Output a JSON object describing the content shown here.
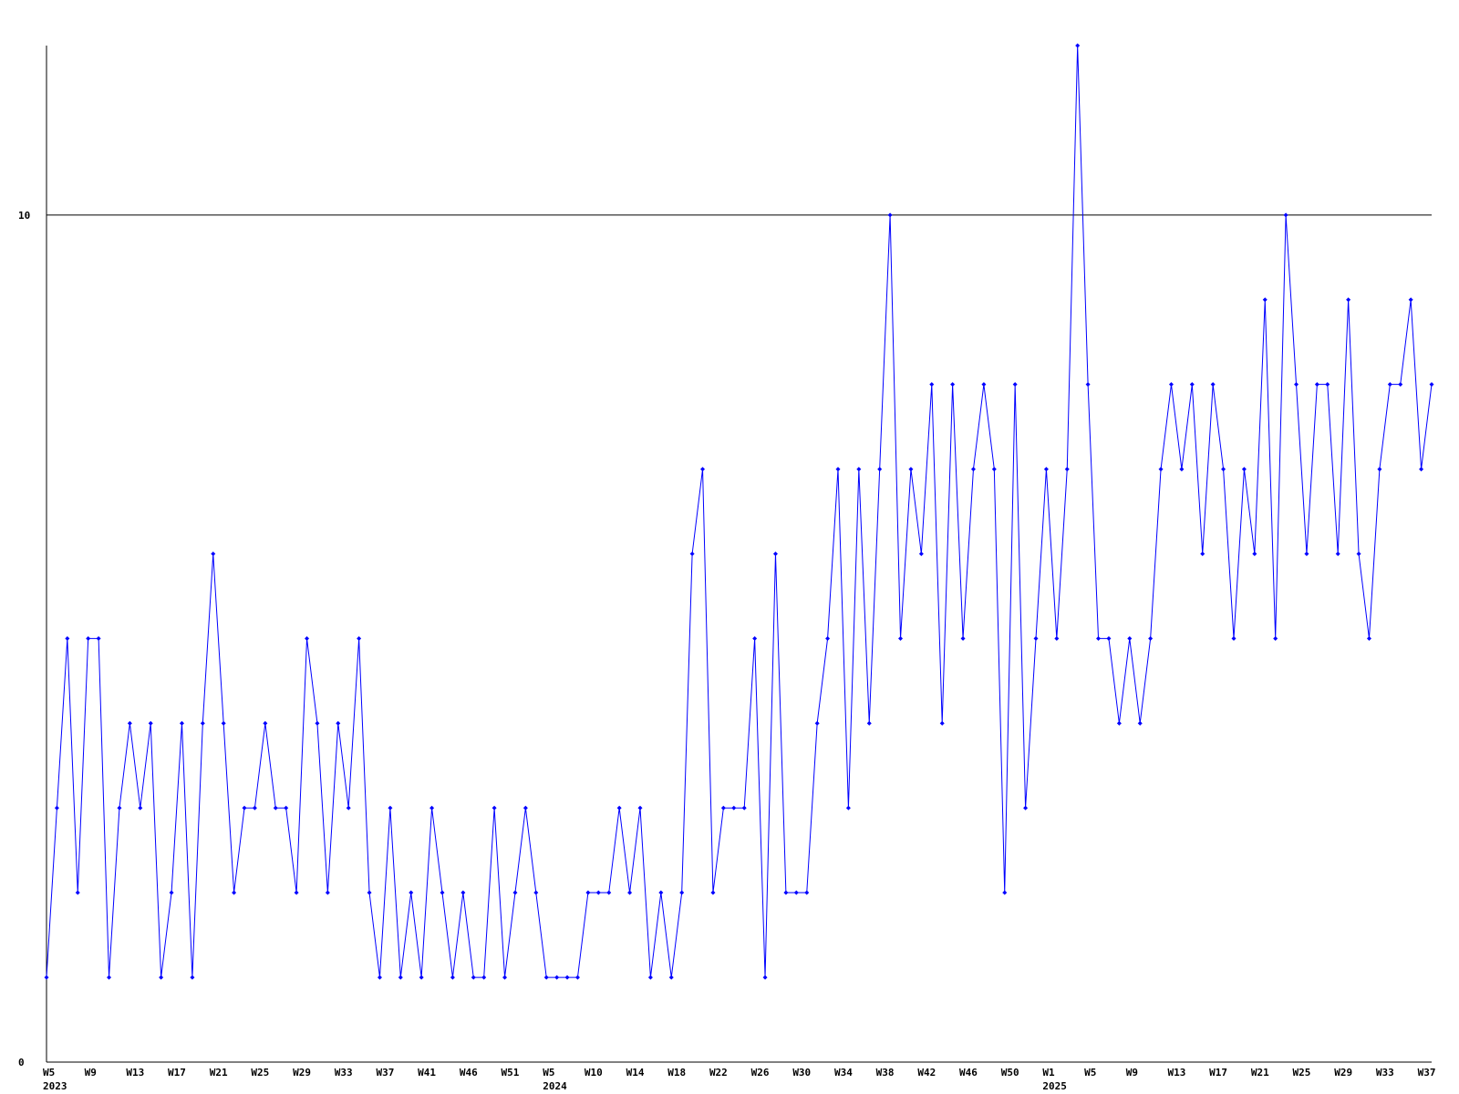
{
  "chart_data": {
    "type": "line",
    "categories": [
      "W5\n2023",
      null,
      null,
      null,
      "W9",
      null,
      null,
      null,
      "W13",
      null,
      null,
      null,
      "W17",
      null,
      null,
      null,
      "W21",
      null,
      null,
      null,
      "W25",
      null,
      null,
      null,
      "W29",
      null,
      null,
      null,
      "W33",
      null,
      null,
      null,
      "W37",
      null,
      null,
      null,
      "W41",
      null,
      null,
      null,
      "W46",
      null,
      null,
      null,
      "W51",
      null,
      null,
      null,
      "W5\n2024",
      null,
      null,
      null,
      "W10",
      null,
      null,
      null,
      "W14",
      null,
      null,
      null,
      "W18",
      null,
      null,
      null,
      "W22",
      null,
      null,
      null,
      "W26",
      null,
      null,
      null,
      "W30",
      null,
      null,
      null,
      "W34",
      null,
      null,
      null,
      "W38",
      null,
      null,
      null,
      "W42",
      null,
      null,
      null,
      "W46",
      null,
      null,
      null,
      "W50",
      null,
      null,
      null,
      "W1\n2025",
      null,
      null,
      null,
      "W5",
      null,
      null,
      null,
      "W9",
      null,
      null,
      null,
      "W13",
      null,
      null,
      null,
      "W17",
      null,
      null,
      null,
      "W21",
      null,
      null,
      null,
      "W25",
      null,
      null,
      null,
      "W29",
      null,
      null,
      null,
      "W33",
      null,
      null,
      null,
      "W37",
      null
    ],
    "series": [
      {
        "color": "#0000ff",
        "values": [
          1,
          3,
          5,
          2,
          5,
          5,
          1,
          3,
          4,
          3,
          4,
          1,
          2,
          4,
          1,
          4,
          6,
          4,
          2,
          3,
          3,
          4,
          3,
          3,
          2,
          5,
          4,
          2,
          4,
          3,
          5,
          2,
          1,
          3,
          1,
          2,
          1,
          3,
          2,
          1,
          2,
          1,
          1,
          3,
          1,
          2,
          3,
          2,
          1,
          1,
          1,
          1,
          2,
          2,
          2,
          3,
          2,
          3,
          1,
          2,
          1,
          2,
          6,
          7,
          2,
          3,
          3,
          3,
          5,
          1,
          6,
          2,
          2,
          2,
          4,
          5,
          7,
          3,
          7,
          4,
          7,
          10,
          5,
          7,
          6,
          8,
          4,
          8,
          5,
          7,
          8,
          7,
          2,
          8,
          3,
          5,
          7,
          5,
          7,
          12,
          8,
          5,
          5,
          4,
          5,
          4,
          5,
          7,
          8,
          7,
          8,
          6,
          8,
          7,
          5,
          7,
          6,
          9,
          5,
          10,
          8,
          6,
          8,
          8,
          6,
          9,
          6,
          5,
          7,
          8,
          8,
          9,
          7,
          8
        ]
      }
    ],
    "ylim": [
      0,
      12
    ],
    "yticks": [
      0,
      10
    ],
    "grid": true
  }
}
